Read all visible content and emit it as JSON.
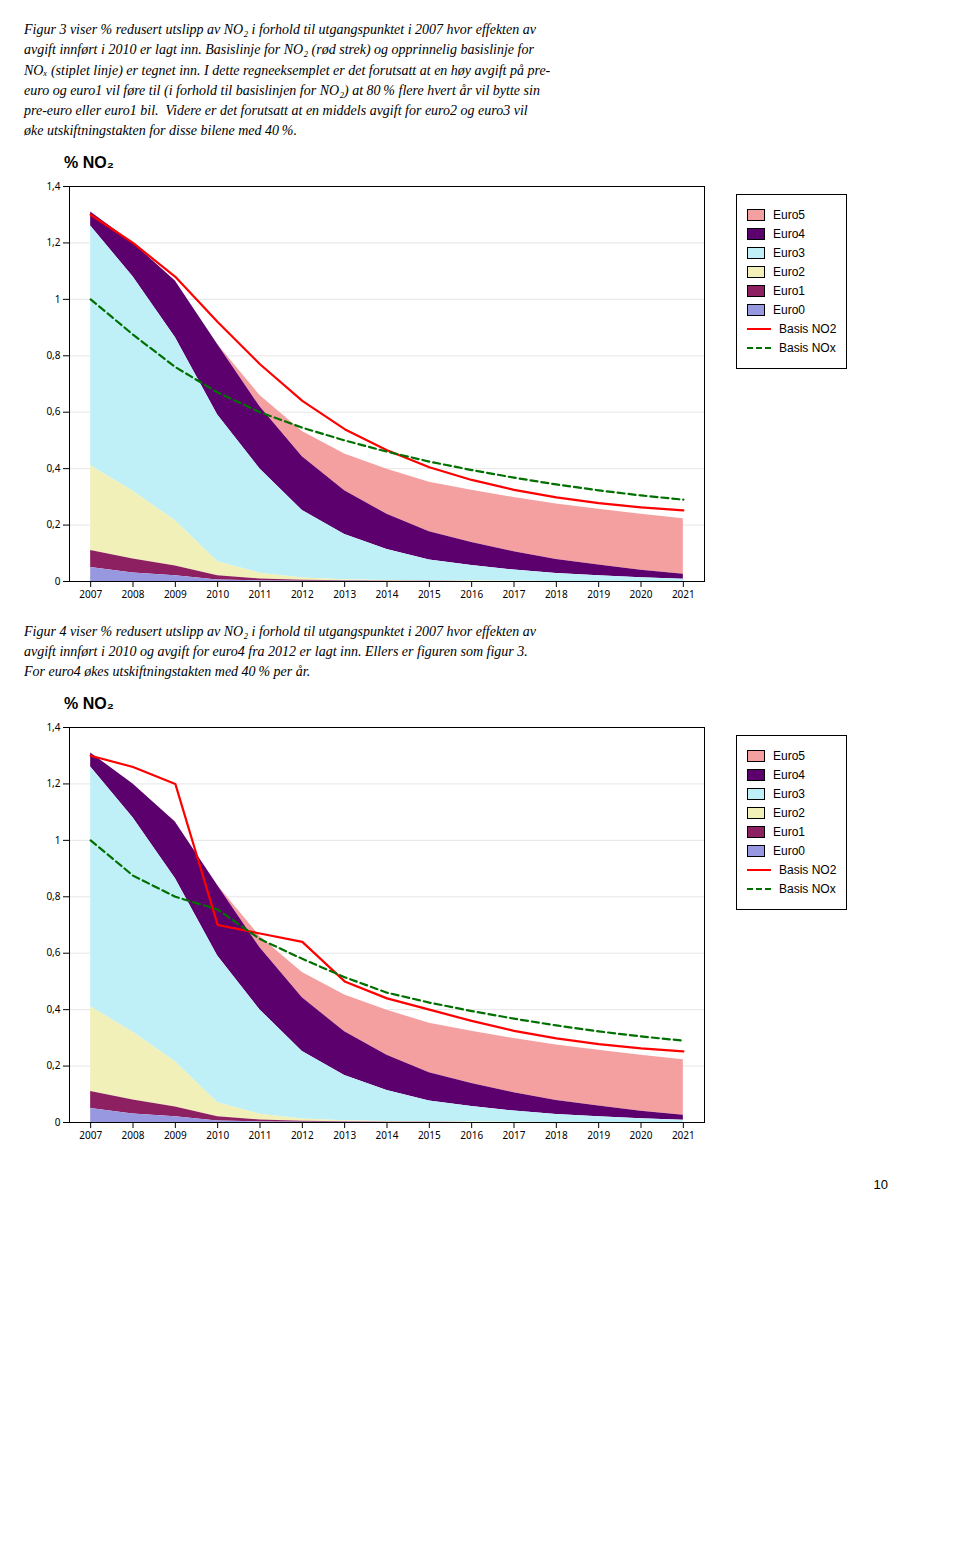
{
  "chart_data": [
    {
      "type": "area",
      "stacked": true,
      "title": "% NO₂",
      "subtitle": "Figur 3 viser % redusert utslipp av NO₂ i forhold til utgangspunktet i 2007 hvor effekten av\navgift innført i 2010 er lagt inn. Basislinje for NO₂ (rød strek) og opprinnelig basislinje for\nNOₓ (stiplet linje) er tegnet inn. I dette regneeksemplet er det forutsatt at en høy avgift på pre-\neuro og euro1 vil føre til (i forhold til basislinjen for NO₂) at 80 % flere hvert år vil bytte sin\npre-euro eller euro1 bil.  Videre er det forutsatt at en middels avgift for euro2 og euro3 vil\nøke utskiftningstakten for disse bilene med 40 %.",
      "x": [
        2007,
        2008,
        2009,
        2010,
        2011,
        2012,
        2013,
        2014,
        2015,
        2016,
        2017,
        2018,
        2019,
        2020,
        2021
      ],
      "xlim": [
        2006.5,
        2021.5
      ],
      "xticks": [
        2007,
        2008,
        2009,
        2010,
        2011,
        2012,
        2013,
        2014,
        2015,
        2016,
        2017,
        2018,
        2019,
        2020,
        2021
      ],
      "ylim": [
        0,
        1.4
      ],
      "yticks": [
        0,
        {
          "value": 0.2,
          "label": "0,2"
        },
        {
          "value": 0.4,
          "label": "0,4"
        },
        {
          "value": 0.6,
          "label": "0,6"
        },
        {
          "value": 0.8,
          "label": "0,8"
        },
        1,
        {
          "value": 1.2,
          "label": "1,2"
        },
        {
          "value": 1.4,
          "label": "1,4"
        }
      ],
      "grid": true,
      "legend": "right",
      "series": [
        {
          "name": "Euro5",
          "type": "area",
          "color": "#F5A0A0",
          "values": [
            0.0,
            0.0,
            0.0,
            0.0,
            0.04,
            0.09,
            0.13,
            0.16,
            0.175,
            0.185,
            0.192,
            0.196,
            0.198,
            0.198,
            0.196
          ]
        },
        {
          "name": "Euro4",
          "type": "area",
          "color": "#5C006E",
          "values": [
            0.05,
            0.12,
            0.2,
            0.25,
            0.22,
            0.19,
            0.155,
            0.125,
            0.1,
            0.082,
            0.065,
            0.05,
            0.038,
            0.027,
            0.018
          ]
        },
        {
          "name": "Euro3",
          "type": "area",
          "color": "#BFF0F8",
          "values": [
            0.85,
            0.76,
            0.65,
            0.52,
            0.37,
            0.24,
            0.16,
            0.11,
            0.075,
            0.055,
            0.04,
            0.028,
            0.02,
            0.013,
            0.008
          ]
        },
        {
          "name": "Euro2",
          "type": "area",
          "color": "#F0F0B8",
          "values": [
            0.3,
            0.24,
            0.16,
            0.05,
            0.02,
            0.008,
            0.004,
            0.002,
            0.001,
            0.001,
            0.0005,
            0.0003,
            0.0002,
            0.0001,
            0.0
          ]
        },
        {
          "name": "Euro1",
          "type": "area",
          "color": "#8C2060",
          "values": [
            0.06,
            0.05,
            0.035,
            0.015,
            0.007,
            0.003,
            0.002,
            0.001,
            0.0005,
            0.0003,
            0.0002,
            0.0001,
            0.0001,
            0.0,
            0.0
          ]
        },
        {
          "name": "Euro0",
          "type": "area",
          "color": "#9898E0",
          "values": [
            0.05,
            0.03,
            0.02,
            0.005,
            0.002,
            0.001,
            0.0005,
            0.0002,
            0.0001,
            0.0001,
            0.0,
            0.0,
            0.0,
            0.0,
            0.0
          ]
        },
        {
          "name": "Basis NO2",
          "type": "line",
          "line_style": "solid",
          "color": "#FF0000",
          "values": [
            1.3,
            1.2,
            1.08,
            0.92,
            0.77,
            0.64,
            0.54,
            0.465,
            0.405,
            0.36,
            0.325,
            0.298,
            0.278,
            0.263,
            0.252
          ]
        },
        {
          "name": "Basis NOx",
          "type": "line",
          "line_style": "dashed",
          "color": "#007000",
          "values": [
            1.0,
            0.875,
            0.76,
            0.67,
            0.6,
            0.545,
            0.5,
            0.46,
            0.425,
            0.395,
            0.368,
            0.344,
            0.323,
            0.305,
            0.29
          ]
        }
      ]
    },
    {
      "type": "area",
      "stacked": true,
      "title": "% NO₂",
      "subtitle": "Figur 4 viser % redusert utslipp av NO₂ i forhold til utgangspunktet i 2007 hvor effekten av\navgift innført i 2010 og avgift for euro4 fra 2012 er lagt inn. Ellers er figuren som figur 3.\nFor euro4 økes utskiftningstakten med 40 % per år.",
      "x": [
        2007,
        2008,
        2009,
        2010,
        2011,
        2012,
        2013,
        2014,
        2015,
        2016,
        2017,
        2018,
        2019,
        2020,
        2021
      ],
      "xlim": [
        2006.5,
        2021.5
      ],
      "xticks": [
        2007,
        2008,
        2009,
        2010,
        2011,
        2012,
        2013,
        2014,
        2015,
        2016,
        2017,
        2018,
        2019,
        2020,
        2021
      ],
      "ylim": [
        0,
        1.4
      ],
      "yticks": [
        0,
        {
          "value": 0.2,
          "label": "0,2"
        },
        {
          "value": 0.4,
          "label": "0,4"
        },
        {
          "value": 0.6,
          "label": "0,6"
        },
        {
          "value": 0.8,
          "label": "0,8"
        },
        1,
        {
          "value": 1.2,
          "label": "1,2"
        },
        {
          "value": 1.4,
          "label": "1,4"
        }
      ],
      "grid": true,
      "legend": "right",
      "annotations": [
        "10"
      ],
      "series": [
        {
          "name": "Euro5",
          "type": "area",
          "color": "#F5A0A0",
          "values": [
            0.0,
            0.0,
            0.0,
            0.0,
            0.04,
            0.09,
            0.13,
            0.16,
            0.175,
            0.185,
            0.192,
            0.196,
            0.198,
            0.198,
            0.196
          ]
        },
        {
          "name": "Euro4",
          "type": "area",
          "color": "#5C006E",
          "values": [
            0.05,
            0.12,
            0.2,
            0.25,
            0.22,
            0.19,
            0.155,
            0.125,
            0.1,
            0.082,
            0.065,
            0.05,
            0.038,
            0.027,
            0.018
          ]
        },
        {
          "name": "Euro3",
          "type": "area",
          "color": "#BFF0F8",
          "values": [
            0.85,
            0.76,
            0.65,
            0.52,
            0.37,
            0.24,
            0.16,
            0.11,
            0.075,
            0.055,
            0.04,
            0.028,
            0.02,
            0.013,
            0.008
          ]
        },
        {
          "name": "Euro2",
          "type": "area",
          "color": "#F0F0B8",
          "values": [
            0.3,
            0.24,
            0.16,
            0.05,
            0.02,
            0.008,
            0.004,
            0.002,
            0.001,
            0.001,
            0.0005,
            0.0003,
            0.0002,
            0.0001,
            0.0
          ]
        },
        {
          "name": "Euro1",
          "type": "area",
          "color": "#8C2060",
          "values": [
            0.06,
            0.05,
            0.035,
            0.015,
            0.007,
            0.003,
            0.002,
            0.001,
            0.0005,
            0.0003,
            0.0002,
            0.0001,
            0.0001,
            0.0,
            0.0
          ]
        },
        {
          "name": "Euro0",
          "type": "area",
          "color": "#9898E0",
          "values": [
            0.05,
            0.03,
            0.02,
            0.005,
            0.002,
            0.001,
            0.0005,
            0.0002,
            0.0001,
            0.0001,
            0.0,
            0.0,
            0.0,
            0.0,
            0.0
          ]
        },
        {
          "name": "Basis NO2",
          "type": "line",
          "line_style": "solid",
          "color": "#FF0000",
          "values": [
            1.3,
            1.26,
            1.2,
            0.7,
            0.67,
            0.64,
            0.5,
            0.44,
            0.4,
            0.36,
            0.325,
            0.298,
            0.278,
            0.263,
            0.252
          ]
        },
        {
          "name": "Basis NOx",
          "type": "line",
          "line_style": "dashed",
          "color": "#007000",
          "values": [
            1.0,
            0.875,
            0.8,
            0.755,
            0.65,
            0.58,
            0.515,
            0.46,
            0.425,
            0.395,
            0.368,
            0.344,
            0.323,
            0.305,
            0.29
          ]
        }
      ]
    }
  ]
}
